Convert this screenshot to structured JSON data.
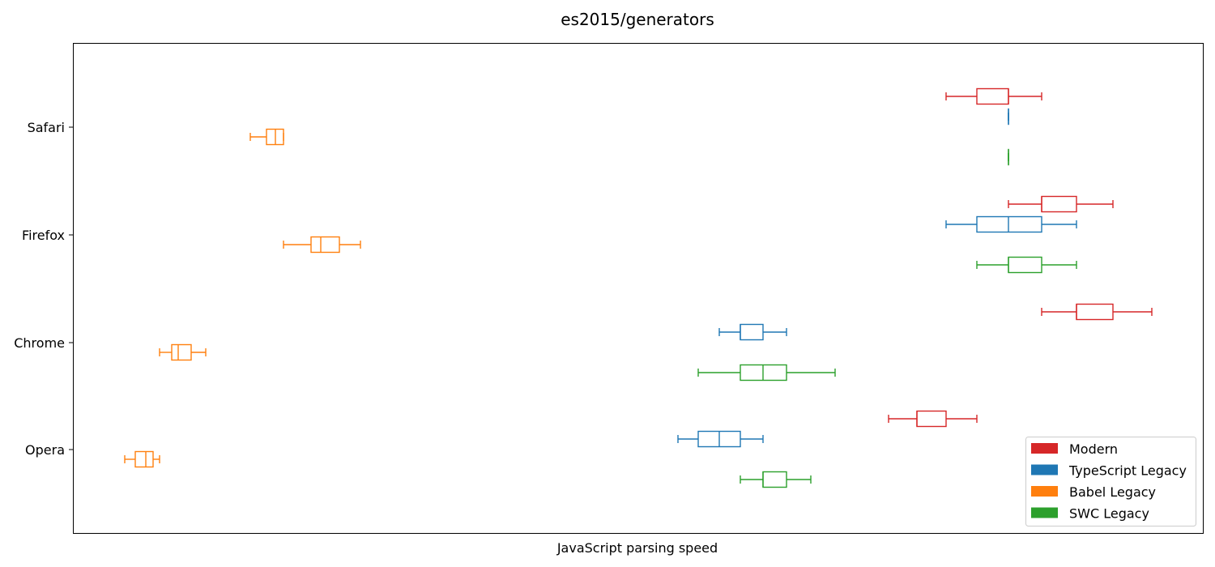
{
  "chart_data": {
    "type": "boxplot",
    "title": "es2015/generators",
    "xlabel": "JavaScript parsing speed",
    "ylabel": "",
    "x_ticks_shown": false,
    "categories": [
      "Safari",
      "Firefox",
      "Chrome",
      "Opera"
    ],
    "series": [
      {
        "name": "Modern",
        "color": "#d62728",
        "boxes": [
          {
            "category": "Safari",
            "whisker_low": 1168,
            "q1": 1206,
            "median": 1245,
            "q3": 1245,
            "whisker_high": 1286
          },
          {
            "category": "Firefox",
            "whisker_low": 1245,
            "q1": 1286,
            "median": 1286,
            "q3": 1329,
            "whisker_high": 1374
          },
          {
            "category": "Chrome",
            "whisker_low": 1286,
            "q1": 1329,
            "median": 1329,
            "q3": 1374,
            "whisker_high": 1422
          },
          {
            "category": "Opera",
            "whisker_low": 1097,
            "q1": 1132,
            "median": 1132,
            "q3": 1168,
            "whisker_high": 1206
          }
        ]
      },
      {
        "name": "TypeScript Legacy",
        "color": "#1f77b4",
        "boxes": [
          {
            "category": "Safari",
            "whisker_low": 1245,
            "q1": 1245,
            "median": 1245,
            "q3": 1245,
            "whisker_high": 1245
          },
          {
            "category": "Firefox",
            "whisker_low": 1168,
            "q1": 1206,
            "median": 1245,
            "q3": 1286,
            "whisker_high": 1329
          },
          {
            "category": "Chrome",
            "whisker_low": 888,
            "q1": 914,
            "median": 914,
            "q3": 942,
            "whisker_high": 971
          },
          {
            "category": "Opera",
            "whisker_low": 837,
            "q1": 862,
            "median": 888,
            "q3": 914,
            "whisker_high": 942
          }
        ]
      },
      {
        "name": "Babel Legacy",
        "color": "#ff7f0e",
        "boxes": [
          {
            "category": "Safari",
            "whisker_low": 309,
            "q1": 329,
            "median": 340,
            "q3": 350,
            "whisker_high": 350
          },
          {
            "category": "Firefox",
            "whisker_low": 350,
            "q1": 384,
            "median": 396,
            "q3": 419,
            "whisker_high": 445
          },
          {
            "category": "Chrome",
            "whisker_low": 197,
            "q1": 212,
            "median": 220,
            "q3": 236,
            "whisker_high": 254
          },
          {
            "category": "Opera",
            "whisker_low": 154,
            "q1": 167,
            "median": 180,
            "q3": 189,
            "whisker_high": 197
          }
        ]
      },
      {
        "name": "SWC Legacy",
        "color": "#2ca02c",
        "boxes": [
          {
            "category": "Safari",
            "whisker_low": 1245,
            "q1": 1245,
            "median": 1245,
            "q3": 1245,
            "whisker_high": 1245
          },
          {
            "category": "Firefox",
            "whisker_low": 1206,
            "q1": 1245,
            "median": 1245,
            "q3": 1286,
            "whisker_high": 1329
          },
          {
            "category": "Chrome",
            "whisker_low": 862,
            "q1": 914,
            "median": 942,
            "q3": 971,
            "whisker_high": 1031
          },
          {
            "category": "Opera",
            "whisker_low": 914,
            "q1": 942,
            "median": 942,
            "q3": 971,
            "whisker_high": 1001
          }
        ]
      }
    ],
    "legend_position": "bottom-right",
    "grid": false
  }
}
